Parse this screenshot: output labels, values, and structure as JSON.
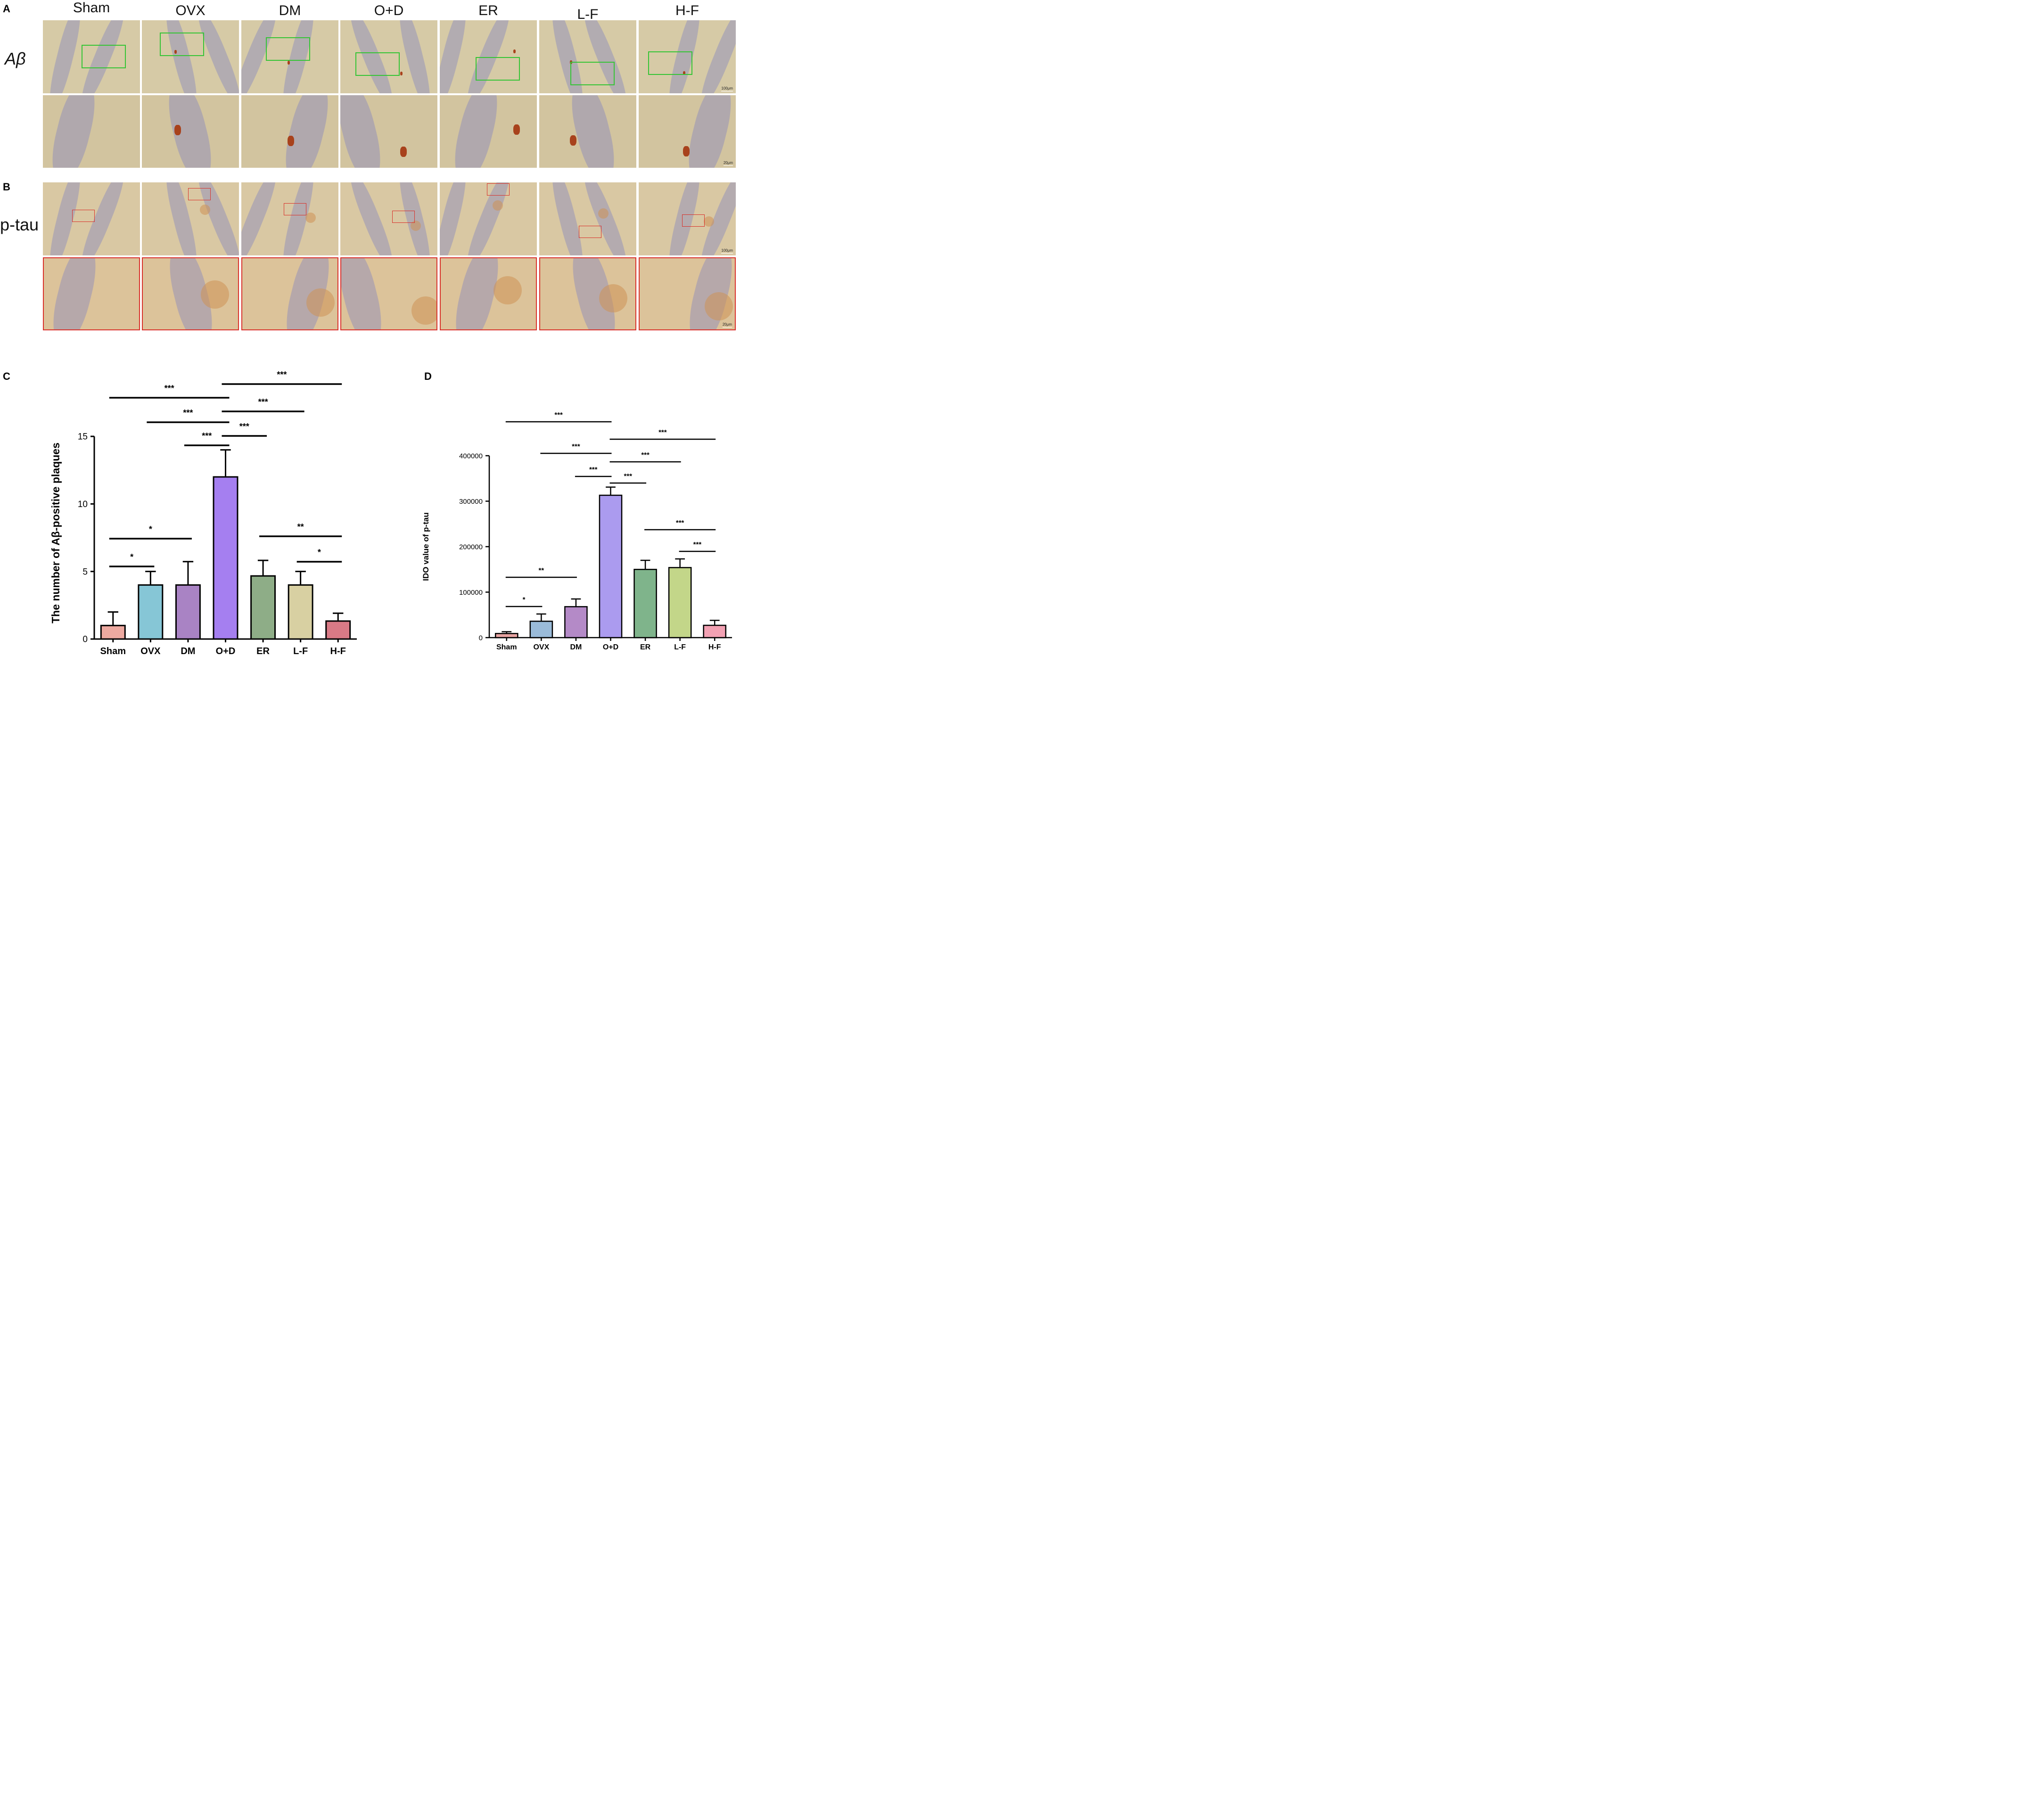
{
  "panels": {
    "A": "A",
    "B": "B",
    "C": "C",
    "D": "D"
  },
  "row_labels": {
    "abeta": "Aβ",
    "ptau": "p-tau"
  },
  "groups": [
    "Sham",
    "OVX",
    "DM",
    "O+D",
    "ER",
    "L-F",
    "H-F"
  ],
  "scale_bars": {
    "overview": "100μm",
    "zoom": "20μm"
  },
  "colors": {
    "bars_c": [
      "#eda9a0",
      "#86c6d6",
      "#a983c4",
      "#a57ff0",
      "#8ead87",
      "#d8d0a2",
      "#d97a86"
    ],
    "bars_d": [
      "#e8a4a2",
      "#9abbd9",
      "#b48ac7",
      "#ab9bef",
      "#7fb48b",
      "#c3d689",
      "#f2a1b3"
    ],
    "abeta_box": "#35c435",
    "ptau_box": "#d9312b"
  },
  "chart_data": [
    {
      "type": "bar",
      "panel": "C",
      "ylabel": "The number of Aβ-positive plaques",
      "xlabel": "",
      "categories": [
        "Sham",
        "OVX",
        "DM",
        "O+D",
        "ER",
        "L-F",
        "H-F"
      ],
      "values": [
        1,
        4,
        4,
        12,
        4.67,
        4,
        1.33
      ],
      "error": [
        1,
        1,
        1.73,
        2,
        1.15,
        1,
        0.58
      ],
      "ylim": [
        0,
        15
      ],
      "yticks": [
        0,
        5,
        10,
        15
      ],
      "significance": [
        {
          "from": "Sham",
          "to": "O+D",
          "label": "***"
        },
        {
          "from": "O+D",
          "to": "H-F",
          "label": "***"
        },
        {
          "from": "OVX",
          "to": "O+D",
          "label": "***"
        },
        {
          "from": "O+D",
          "to": "L-F",
          "label": "***"
        },
        {
          "from": "O+D",
          "to": "ER",
          "label": "***"
        },
        {
          "from": "DM",
          "to": "O+D",
          "label": "***"
        },
        {
          "from": "Sham",
          "to": "DM",
          "label": "*"
        },
        {
          "from": "Sham",
          "to": "OVX",
          "label": "*"
        },
        {
          "from": "ER",
          "to": "H-F",
          "label": "**"
        },
        {
          "from": "L-F",
          "to": "H-F",
          "label": "*"
        }
      ]
    },
    {
      "type": "bar",
      "panel": "D",
      "ylabel": "IDO value of p-tau",
      "xlabel": "",
      "categories": [
        "Sham",
        "OVX",
        "DM",
        "O+D",
        "ER",
        "L-F",
        "H-F"
      ],
      "values": [
        9000,
        36000,
        68000,
        313000,
        150000,
        154000,
        27000
      ],
      "error": [
        4000,
        16000,
        17000,
        18000,
        20000,
        19000,
        11000
      ],
      "ylim": [
        0,
        400000
      ],
      "yticks": [
        0,
        100000,
        200000,
        300000,
        400000
      ],
      "significance": [
        {
          "from": "Sham",
          "to": "O+D",
          "label": "***"
        },
        {
          "from": "O+D",
          "to": "H-F",
          "label": "***"
        },
        {
          "from": "OVX",
          "to": "O+D",
          "label": "***"
        },
        {
          "from": "O+D",
          "to": "L-F",
          "label": "***"
        },
        {
          "from": "DM",
          "to": "O+D",
          "label": "***"
        },
        {
          "from": "O+D",
          "to": "ER",
          "label": "***"
        },
        {
          "from": "ER",
          "to": "H-F",
          "label": "***"
        },
        {
          "from": "L-F",
          "to": "H-F",
          "label": "***"
        },
        {
          "from": "Sham",
          "to": "DM",
          "label": "**"
        },
        {
          "from": "Sham",
          "to": "OVX",
          "label": "*"
        }
      ]
    }
  ]
}
